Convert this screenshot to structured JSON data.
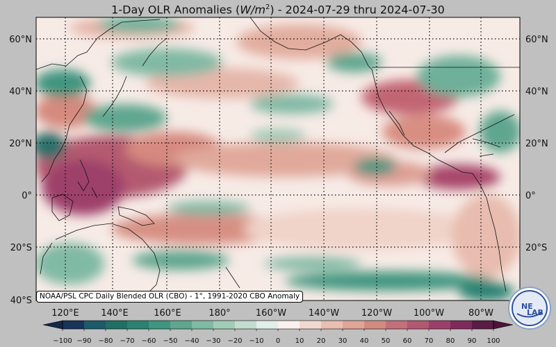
{
  "title": {
    "prefix": "1-Day OLR Anomalies (",
    "unit_base": "W/m",
    "unit_exp": "2",
    "suffix": ") - 2024-07-29 thru 2024-07-30"
  },
  "source_label": "NOAA/PSL CPC Daily Blended OLR (CBO) - 1°, 1991-2020 CBO Anomaly",
  "logo": {
    "top_text": "NE",
    "bottom_text": "LAB",
    "icon": "noaa-eclipse-lab-logo"
  },
  "map": {
    "lon_labels": [
      "120°E",
      "140°E",
      "160°E",
      "180°",
      "160°W",
      "140°W",
      "120°W",
      "100°W",
      "80°W"
    ],
    "lat_labels": [
      "60°N",
      "40°N",
      "20°N",
      "0°",
      "20°S",
      "40°S"
    ],
    "lat_range": [
      -40,
      68
    ],
    "lon_range": [
      110,
      290
    ]
  },
  "colorbar": {
    "ticks": [
      "−100",
      "−90",
      "−80",
      "−70",
      "−60",
      "−50",
      "−40",
      "−30",
      "−20",
      "−10",
      "0",
      "10",
      "20",
      "30",
      "40",
      "50",
      "60",
      "70",
      "80",
      "90",
      "100"
    ],
    "colors": [
      "#1a3358",
      "#1d5a6a",
      "#1f6f64",
      "#2b8272",
      "#3f957f",
      "#5ea68f",
      "#80b9a4",
      "#a2cbb8",
      "#c2dcd0",
      "#e2eeea",
      "#faf1ee",
      "#f2d8cf",
      "#e9bfb2",
      "#dfa596",
      "#d28b7f",
      "#c4707a",
      "#b45872",
      "#9d3f6a",
      "#7f2a5b",
      "#5a1d45"
    ]
  }
}
